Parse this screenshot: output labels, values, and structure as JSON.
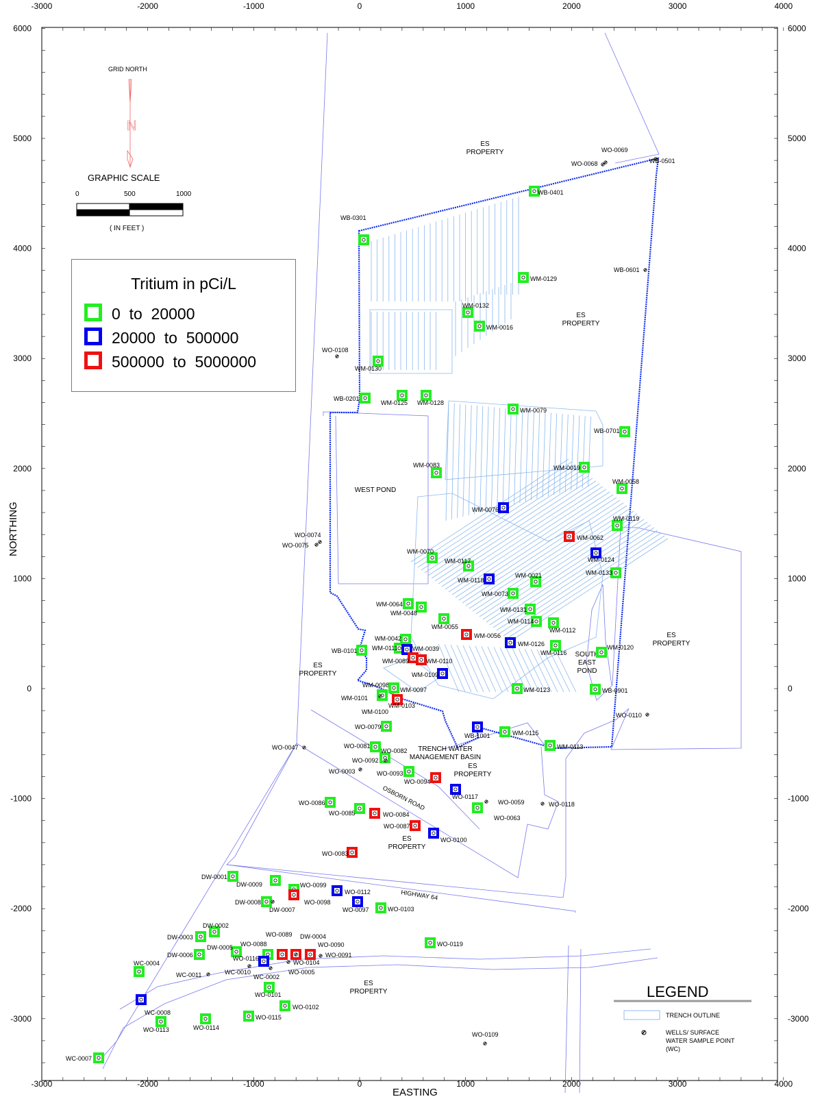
{
  "axes": {
    "x_title": "EASTING",
    "y_title": "NORTHING",
    "x_ticks": [
      "-3000",
      "-2000",
      "-1000",
      "0",
      "1000",
      "2000",
      "3000",
      "4000"
    ],
    "y_ticks": [
      "6000",
      "5000",
      "4000",
      "3000",
      "2000",
      "1000",
      "0",
      "-1000",
      "-2000",
      "-3000"
    ]
  },
  "north_arrow": {
    "label": "GRID NORTH",
    "letter": "N"
  },
  "scale_bar": {
    "title": "GRAPHIC SCALE",
    "ticks": [
      "0",
      "500",
      "1000"
    ],
    "units": "( IN FEET )"
  },
  "tritium_legend": {
    "title": "Tritium in pCi/L",
    "classes": [
      {
        "label": "0  to  20000",
        "color": "#22ee22"
      },
      {
        "label": "20000  to  500000",
        "color": "#0000ee"
      },
      {
        "label": "500000  to  5000000",
        "color": "#ee1111"
      }
    ]
  },
  "map_legend": {
    "title": "LEGEND",
    "trench": "TRENCH OUTLINE",
    "wells_line1": "WELLS/ SURFACE",
    "wells_line2": "WATER SAMPLE POINT",
    "wells_line3": "(WC)"
  },
  "area_labels": [
    {
      "lines": [
        "ES",
        "PROPERTY"
      ]
    },
    {
      "lines": [
        "ES",
        "PROPERTY"
      ]
    },
    {
      "lines": [
        "WEST POND"
      ]
    },
    {
      "lines": [
        "ES",
        "PROPERTY"
      ]
    },
    {
      "lines": [
        "ES",
        "PROPERTY"
      ]
    },
    {
      "lines": [
        "SOUTH",
        "EAST",
        "POND"
      ]
    },
    {
      "lines": [
        "TRENCH WATER",
        "MANAGEMENT BASIN"
      ]
    },
    {
      "lines": [
        "ES",
        "PROPERTY"
      ]
    },
    {
      "lines": [
        "ES",
        "PROPERTY"
      ]
    },
    {
      "lines": [
        "ES",
        "PROPERTY"
      ]
    }
  ],
  "roads": [
    "OSBORN ROAD",
    "HIGHWAY 64"
  ],
  "wells": [
    {
      "id": "WB-0401",
      "c": "green"
    },
    {
      "id": "WB-0301",
      "c": "green"
    },
    {
      "id": "WM-0129",
      "c": "green"
    },
    {
      "id": "WM-0132",
      "c": "green"
    },
    {
      "id": "WM-0016",
      "c": "green"
    },
    {
      "id": "WM-0130",
      "c": "green"
    },
    {
      "id": "WM-0125",
      "c": "green"
    },
    {
      "id": "WM-0128",
      "c": "green"
    },
    {
      "id": "WB-0201",
      "c": "green"
    },
    {
      "id": "WM-0079",
      "c": "green"
    },
    {
      "id": "WB-0701",
      "c": "green"
    },
    {
      "id": "WM-0083",
      "c": "green"
    },
    {
      "id": "WM-0019",
      "c": "green"
    },
    {
      "id": "WM-0058",
      "c": "green"
    },
    {
      "id": "WM-0076",
      "c": "blue"
    },
    {
      "id": "WM-0119",
      "c": "green"
    },
    {
      "id": "WM-0062",
      "c": "red"
    },
    {
      "id": "WM-0124",
      "c": "blue"
    },
    {
      "id": "WM-0070",
      "c": "green"
    },
    {
      "id": "WM-0117",
      "c": "green"
    },
    {
      "id": "WM-0118",
      "c": "blue"
    },
    {
      "id": "WM-0021",
      "c": "green"
    },
    {
      "id": "WM-0133",
      "c": "green"
    },
    {
      "id": "WM-0073",
      "c": "green"
    },
    {
      "id": "WM-0064",
      "c": "green"
    },
    {
      "id": "WM-0048",
      "c": "green"
    },
    {
      "id": "WM-0131",
      "c": "green"
    },
    {
      "id": "WM-0055",
      "c": "green"
    },
    {
      "id": "WM-0114",
      "c": "green"
    },
    {
      "id": "WM-0112",
      "c": "green"
    },
    {
      "id": "WM-0056",
      "c": "red"
    },
    {
      "id": "WM-0042",
      "c": "green"
    },
    {
      "id": "WM-0126",
      "c": "blue"
    },
    {
      "id": "WM-0116",
      "c": "green"
    },
    {
      "id": "WM-0111",
      "c": "green"
    },
    {
      "id": "WM-0039",
      "c": "blue"
    },
    {
      "id": "WB-0101",
      "c": "green"
    },
    {
      "id": "WM-0120",
      "c": "green"
    },
    {
      "id": "WM-0089",
      "c": "red"
    },
    {
      "id": "WM-0110",
      "c": "red"
    },
    {
      "id": "WM-0109",
      "c": "blue"
    },
    {
      "id": "WM-0098",
      "c": "green"
    },
    {
      "id": "WM-0097",
      "c": "green"
    },
    {
      "id": "WM-0123",
      "c": "green"
    },
    {
      "id": "WB-0901",
      "c": "green"
    },
    {
      "id": "WM-0101",
      "c": "green"
    },
    {
      "id": "WM-0103",
      "c": "red"
    },
    {
      "id": "WO-0079",
      "c": "green"
    },
    {
      "id": "WB-1001",
      "c": "blue"
    },
    {
      "id": "WM-0115",
      "c": "green"
    },
    {
      "id": "WM-0113",
      "c": "green"
    },
    {
      "id": "WO-0081",
      "c": "green"
    },
    {
      "id": "WO-0082",
      "c": "green"
    },
    {
      "id": "WO-0093",
      "c": "green"
    },
    {
      "id": "WO-0094",
      "c": "red"
    },
    {
      "id": "WO-0117",
      "c": "blue"
    },
    {
      "id": "WO-0086",
      "c": "green"
    },
    {
      "id": "WO-0085",
      "c": "green"
    },
    {
      "id": "WO-0084",
      "c": "red"
    },
    {
      "id": "WO-0063",
      "c": "green"
    },
    {
      "id": "WO-0087",
      "c": "red"
    },
    {
      "id": "WO-0100",
      "c": "blue"
    },
    {
      "id": "WO-0083",
      "c": "red"
    },
    {
      "id": "DW-0001",
      "c": "green"
    },
    {
      "id": "DW-0009",
      "c": "green"
    },
    {
      "id": "WO-0099",
      "c": "green"
    },
    {
      "id": "WO-0098",
      "c": "red"
    },
    {
      "id": "WO-0112",
      "c": "blue"
    },
    {
      "id": "DW-0008",
      "c": "green"
    },
    {
      "id": "WO-0097",
      "c": "blue"
    },
    {
      "id": "WO-0103",
      "c": "green"
    },
    {
      "id": "DW-0002",
      "c": "green"
    },
    {
      "id": "DW-0003",
      "c": "green"
    },
    {
      "id": "WO-0119",
      "c": "green"
    },
    {
      "id": "DW-0005",
      "c": "green"
    },
    {
      "id": "WO-0088",
      "c": "green"
    },
    {
      "id": "WO-0089",
      "c": "red"
    },
    {
      "id": "DW-0004",
      "c": "red"
    },
    {
      "id": "WO-0090",
      "c": "red"
    },
    {
      "id": "DW-0006",
      "c": "green"
    },
    {
      "id": "WO-0116",
      "c": "blue"
    },
    {
      "id": "WC-0004",
      "c": "green"
    },
    {
      "id": "WO-0101",
      "c": "green"
    },
    {
      "id": "WC-0008",
      "c": "blue"
    },
    {
      "id": "WO-0102",
      "c": "green"
    },
    {
      "id": "WO-0113",
      "c": "green"
    },
    {
      "id": "WO-0114",
      "c": "green"
    },
    {
      "id": "WO-0115",
      "c": "green"
    },
    {
      "id": "WC-0007",
      "c": "green"
    }
  ],
  "points": [
    "WO-0069",
    "WO-0068",
    "WB-0501",
    "WB-0601",
    "WO-0108",
    "WO-0074",
    "WO-0075",
    "WM-0100",
    "WO-0110",
    "WO-0047",
    "WO-0092",
    "WO-0003",
    "WO-0059",
    "WO-0118",
    "DW-0007",
    "WO-0104",
    "WO-0091",
    "WO-0005",
    "WC-0011",
    "WC-0010",
    "WC-0002",
    "WO-0109"
  ]
}
